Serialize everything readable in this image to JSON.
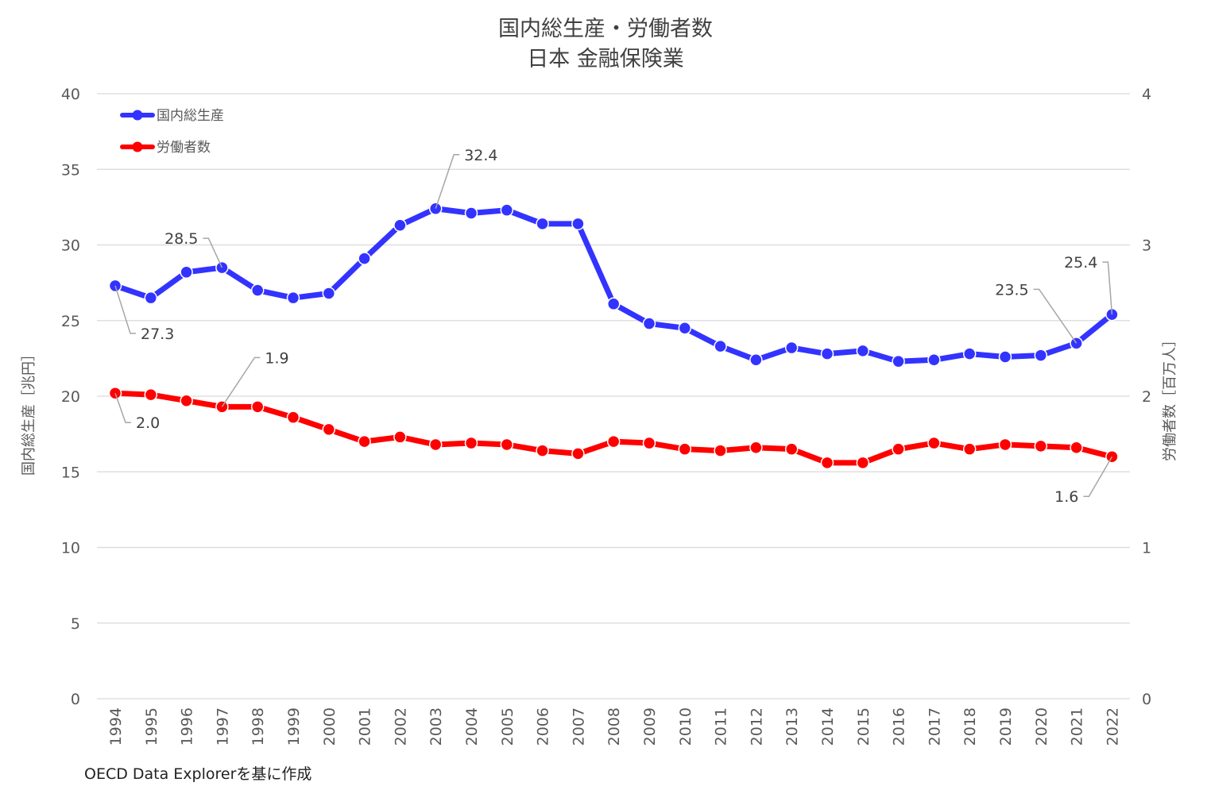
{
  "chart_data": {
    "type": "line",
    "title": "国内総生産・労働者数",
    "subtitle": "日本 金融保険業",
    "categories": [
      "1994",
      "1995",
      "1996",
      "1997",
      "1998",
      "1999",
      "2000",
      "2001",
      "2002",
      "2003",
      "2004",
      "2005",
      "2006",
      "2007",
      "2008",
      "2009",
      "2010",
      "2011",
      "2012",
      "2013",
      "2014",
      "2015",
      "2016",
      "2017",
      "2018",
      "2019",
      "2020",
      "2021",
      "2022"
    ],
    "y_left": {
      "label": "国内総生産［兆円］",
      "range": [
        0,
        40
      ],
      "ticks": [
        "0",
        "5",
        "10",
        "15",
        "20",
        "25",
        "30",
        "35",
        "40"
      ]
    },
    "y_right": {
      "label": "労働者数［百万人］",
      "range": [
        0,
        4
      ],
      "ticks": [
        "0",
        "1",
        "2",
        "3",
        "4"
      ]
    },
    "series": [
      {
        "name": "国内総生産",
        "axis": "left",
        "color": "#3333ff",
        "values": [
          27.3,
          26.5,
          28.2,
          28.5,
          27.0,
          26.5,
          26.8,
          29.1,
          31.3,
          32.4,
          32.1,
          32.3,
          31.4,
          31.4,
          26.1,
          24.8,
          24.5,
          23.3,
          22.4,
          23.2,
          22.8,
          23.0,
          22.3,
          22.4,
          22.8,
          22.6,
          22.7,
          23.5,
          25.4
        ],
        "annotations": [
          {
            "index": 0,
            "text": "27.3"
          },
          {
            "index": 3,
            "text": "28.5"
          },
          {
            "index": 9,
            "text": "32.4"
          },
          {
            "index": 27,
            "text": "23.5"
          },
          {
            "index": 28,
            "text": "25.4"
          }
        ]
      },
      {
        "name": "労働者数",
        "axis": "right",
        "color": "#ff0000",
        "values": [
          2.02,
          2.01,
          1.97,
          1.93,
          1.93,
          1.86,
          1.78,
          1.7,
          1.73,
          1.68,
          1.69,
          1.68,
          1.64,
          1.62,
          1.7,
          1.69,
          1.65,
          1.64,
          1.66,
          1.65,
          1.56,
          1.56,
          1.65,
          1.69,
          1.65,
          1.68,
          1.67,
          1.66,
          1.6
        ],
        "annotations": [
          {
            "index": 0,
            "text": "2.0"
          },
          {
            "index": 3,
            "text": "1.9"
          },
          {
            "index": 28,
            "text": "1.6"
          }
        ]
      }
    ],
    "legend_position": "top-left",
    "grid": true
  },
  "source": "OECD Data Explorerを基に作成"
}
